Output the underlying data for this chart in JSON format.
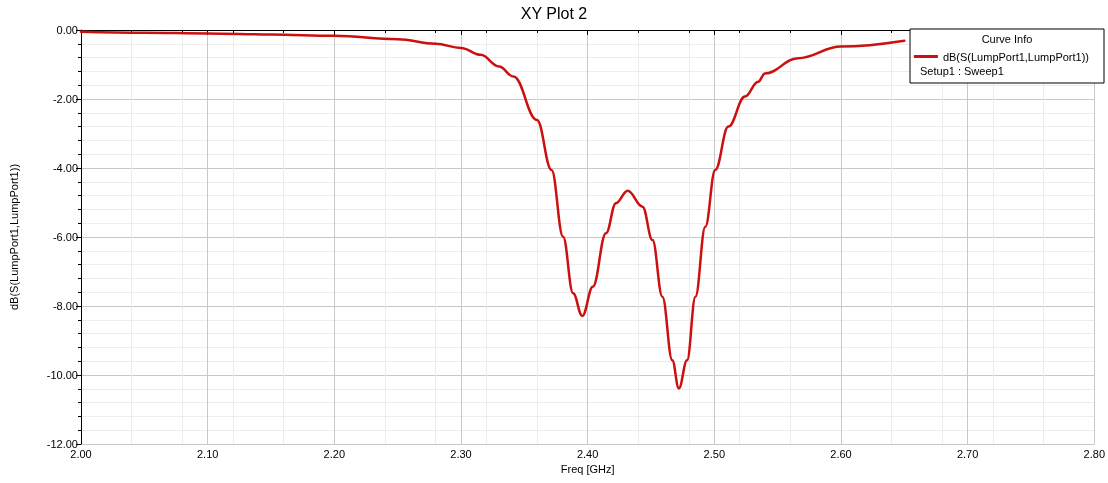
{
  "chart_data": {
    "type": "line",
    "title": "XY Plot 2",
    "xlabel": "Freq [GHz]",
    "ylabel": "dB(S(LumpPort1,LumpPort1))",
    "legend_title": "Curve Info",
    "annotations": [
      "Setup1 : Sweep1"
    ],
    "series": [
      {
        "name": "dB(S(LumpPort1,LumpPort1))",
        "color": "#cc1010",
        "x": [
          2.0,
          2.05,
          2.1,
          2.15,
          2.2,
          2.25,
          2.28,
          2.3,
          2.3155,
          2.33,
          2.3415,
          2.36,
          2.3715,
          2.3806,
          2.3885,
          2.3958,
          2.4041,
          2.4145,
          2.4223,
          2.4316,
          2.4433,
          2.4512,
          2.459,
          2.4668,
          2.472,
          2.4785,
          2.4851,
          2.4929,
          2.5007,
          2.5111,
          2.5242,
          2.5346,
          2.54,
          2.566,
          2.6,
          2.65
        ],
        "values": [
          -0.05,
          -0.08,
          -0.1,
          -0.13,
          -0.17,
          -0.27,
          -0.4,
          -0.52,
          -0.72,
          -1.06,
          -1.35,
          -2.61,
          -4.06,
          -5.99,
          -7.63,
          -8.29,
          -7.44,
          -5.89,
          -5.02,
          -4.66,
          -5.12,
          -6.09,
          -7.73,
          -9.57,
          -10.39,
          -9.57,
          -7.73,
          -5.7,
          -4.06,
          -2.8,
          -1.93,
          -1.5,
          -1.26,
          -0.82,
          -0.48,
          -0.31
        ]
      }
    ],
    "xlim": [
      2.0,
      2.8
    ],
    "xticks": [
      {
        "value": 2.0,
        "label": "2.00"
      },
      {
        "value": 2.1,
        "label": "2.10"
      },
      {
        "value": 2.2,
        "label": "2.20"
      },
      {
        "value": 2.3,
        "label": "2.30"
      },
      {
        "value": 2.4,
        "label": "2.40"
      },
      {
        "value": 2.5,
        "label": "2.50"
      },
      {
        "value": 2.6,
        "label": "2.60"
      },
      {
        "value": 2.7,
        "label": "2.70"
      },
      {
        "value": 2.8,
        "label": "2.80"
      }
    ],
    "ylim": [
      -12,
      0
    ],
    "yticks": [
      {
        "value": -12,
        "label": "-12.00"
      },
      {
        "value": -10,
        "label": "-10.00"
      },
      {
        "value": -8,
        "label": "-8.00"
      },
      {
        "value": -6,
        "label": "-6.00"
      },
      {
        "value": -4,
        "label": "-4.00"
      },
      {
        "value": -2,
        "label": "-2.00"
      },
      {
        "value": 0,
        "label": "0.00"
      }
    ],
    "grid": true,
    "legend": "top right",
    "marker": "none",
    "line_style": "solid"
  }
}
